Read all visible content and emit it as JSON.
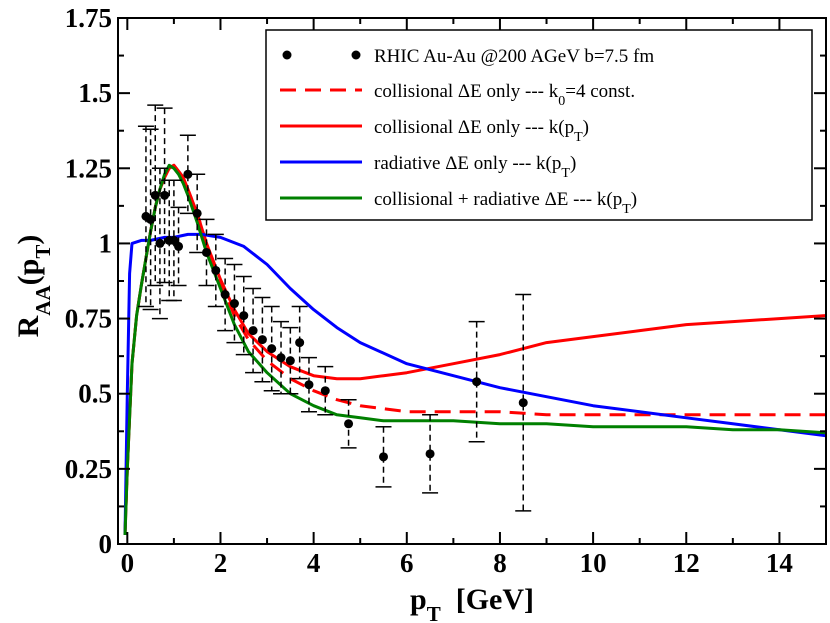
{
  "chart_data": {
    "type": "line",
    "xlabel": {
      "main": "p",
      "sub": "T",
      "rest": "  [GeV]"
    },
    "ylabel": {
      "main": "R",
      "sub1": "AA",
      "mid": "(p",
      "sub2": "T",
      "end": ")"
    },
    "xlim": [
      -0.2,
      15
    ],
    "ylim": [
      0,
      1.75
    ],
    "xticks": [
      0,
      2,
      4,
      6,
      8,
      10,
      12,
      14
    ],
    "xtick_labels": [
      "0",
      "2",
      "4",
      "6",
      "8",
      "10",
      "12",
      "14"
    ],
    "yticks": [
      0,
      0.25,
      0.5,
      0.75,
      1,
      1.25,
      1.5,
      1.75
    ],
    "ytick_labels": [
      "0",
      "0.25",
      "0.5",
      "0.75",
      "1",
      "1.25",
      "1.5",
      "1.75"
    ],
    "grid": false,
    "legend_position": "top-right",
    "legend": [
      {
        "parts": [
          [
            "RHIC Au-Au @200 AGeV b=7.5 fm",
            ""
          ]
        ]
      },
      {
        "parts": [
          [
            "collisional ΔE only --- k",
            ""
          ],
          [
            "0",
            "sub"
          ],
          [
            "=4 const.",
            ""
          ]
        ]
      },
      {
        "parts": [
          [
            "collisional ΔE only --- k(p",
            ""
          ],
          [
            "T",
            "sub"
          ],
          [
            ")",
            ""
          ]
        ]
      },
      {
        "parts": [
          [
            "radiative ΔE only --- k(p",
            ""
          ],
          [
            "T",
            "sub"
          ],
          [
            ")",
            ""
          ]
        ]
      },
      {
        "parts": [
          [
            "collisional + radiative ΔE  --- k(p",
            ""
          ],
          [
            "T",
            "sub"
          ],
          [
            ")",
            ""
          ]
        ]
      }
    ],
    "data_points": {
      "name": "RHIC Au-Au @200 AGeV b=7.5 fm",
      "color": "#000000",
      "x": [
        0.4,
        0.5,
        0.6,
        0.7,
        0.8,
        0.9,
        1.0,
        1.1,
        1.3,
        1.5,
        1.7,
        1.9,
        2.1,
        2.3,
        2.5,
        2.7,
        2.9,
        3.1,
        3.3,
        3.5,
        3.7,
        3.9,
        4.25,
        4.75,
        5.5,
        6.5,
        7.5,
        8.5
      ],
      "y": [
        1.09,
        1.08,
        1.16,
        1.0,
        1.16,
        1.01,
        1.01,
        0.99,
        1.23,
        1.1,
        0.97,
        0.91,
        0.83,
        0.8,
        0.76,
        0.71,
        0.68,
        0.65,
        0.62,
        0.61,
        0.67,
        0.53,
        0.51,
        0.4,
        0.29,
        0.3,
        0.54,
        0.47
      ],
      "yerr": [
        0.3,
        0.3,
        0.3,
        0.25,
        0.29,
        0.2,
        0.2,
        0.13,
        0.13,
        0.13,
        0.11,
        0.12,
        0.12,
        0.13,
        0.13,
        0.14,
        0.14,
        0.14,
        0.12,
        0.11,
        0.12,
        0.09,
        0.08,
        0.08,
        0.1,
        0.13,
        0.2,
        0.36
      ]
    },
    "series": [
      {
        "name": "collisional ΔE only --- k0=4 const.",
        "color": "#ff0000",
        "dash": true,
        "x": [
          -0.05,
          0.0,
          0.1,
          0.2,
          0.3,
          0.4,
          0.5,
          0.6,
          0.7,
          0.8,
          0.9,
          1.0,
          1.1,
          1.2,
          1.3,
          1.5,
          1.7,
          2.0,
          2.3,
          2.6,
          3.0,
          3.5,
          4.0,
          4.5,
          5.0,
          6.0,
          7.0,
          8.0,
          9.0,
          10.0,
          11.0,
          12.0,
          13.0,
          14.0,
          15.0
        ],
        "y": [
          0.03,
          0.25,
          0.6,
          0.76,
          0.86,
          0.95,
          1.04,
          1.12,
          1.18,
          1.22,
          1.25,
          1.26,
          1.24,
          1.22,
          1.18,
          1.1,
          1.0,
          0.87,
          0.76,
          0.68,
          0.61,
          0.55,
          0.51,
          0.48,
          0.46,
          0.44,
          0.44,
          0.44,
          0.43,
          0.43,
          0.43,
          0.43,
          0.43,
          0.43,
          0.43
        ]
      },
      {
        "name": "collisional ΔE only --- k(pT)",
        "color": "#ff0000",
        "dash": false,
        "x": [
          -0.05,
          0.0,
          0.1,
          0.2,
          0.3,
          0.4,
          0.5,
          0.6,
          0.7,
          0.8,
          0.9,
          1.0,
          1.1,
          1.2,
          1.3,
          1.5,
          1.7,
          2.0,
          2.3,
          2.6,
          3.0,
          3.5,
          4.0,
          4.5,
          5.0,
          5.5,
          6.0,
          7.0,
          8.0,
          9.0,
          10.0,
          11.0,
          12.0,
          13.0,
          14.0,
          15.0
        ],
        "y": [
          0.03,
          0.25,
          0.6,
          0.76,
          0.86,
          0.95,
          1.04,
          1.12,
          1.18,
          1.22,
          1.25,
          1.26,
          1.24,
          1.22,
          1.18,
          1.1,
          1.0,
          0.88,
          0.78,
          0.7,
          0.64,
          0.59,
          0.56,
          0.55,
          0.55,
          0.56,
          0.57,
          0.6,
          0.63,
          0.67,
          0.69,
          0.71,
          0.73,
          0.74,
          0.75,
          0.76
        ]
      },
      {
        "name": "radiative ΔE only --- k(pT)",
        "color": "#0000ff",
        "dash": false,
        "x": [
          -0.05,
          0.0,
          0.05,
          0.1,
          0.3,
          0.5,
          0.8,
          1.0,
          1.3,
          1.6,
          2.0,
          2.5,
          3.0,
          3.5,
          4.0,
          4.5,
          5.0,
          6.0,
          7.0,
          8.0,
          9.0,
          10.0,
          11.0,
          12.0,
          13.0,
          14.0,
          15.0
        ],
        "y": [
          0.03,
          0.5,
          0.9,
          1.0,
          1.01,
          1.01,
          1.02,
          1.02,
          1.03,
          1.03,
          1.02,
          0.99,
          0.93,
          0.85,
          0.78,
          0.72,
          0.67,
          0.6,
          0.56,
          0.52,
          0.49,
          0.46,
          0.44,
          0.42,
          0.4,
          0.38,
          0.36
        ]
      },
      {
        "name": "collisional + radiative ΔE --- k(pT)",
        "color": "#008000",
        "dash": false,
        "x": [
          -0.05,
          0.0,
          0.1,
          0.2,
          0.3,
          0.4,
          0.5,
          0.6,
          0.7,
          0.8,
          0.9,
          1.0,
          1.1,
          1.2,
          1.3,
          1.5,
          1.7,
          2.0,
          2.3,
          2.6,
          3.0,
          3.5,
          4.0,
          4.5,
          5.0,
          5.5,
          6.0,
          7.0,
          8.0,
          9.0,
          10.0,
          11.0,
          12.0,
          13.0,
          14.0,
          15.0
        ],
        "y": [
          0.03,
          0.25,
          0.6,
          0.76,
          0.86,
          0.95,
          1.04,
          1.12,
          1.18,
          1.23,
          1.26,
          1.25,
          1.23,
          1.2,
          1.16,
          1.07,
          0.97,
          0.85,
          0.73,
          0.64,
          0.57,
          0.5,
          0.46,
          0.43,
          0.42,
          0.41,
          0.41,
          0.41,
          0.4,
          0.4,
          0.39,
          0.39,
          0.39,
          0.38,
          0.38,
          0.37
        ]
      }
    ]
  }
}
